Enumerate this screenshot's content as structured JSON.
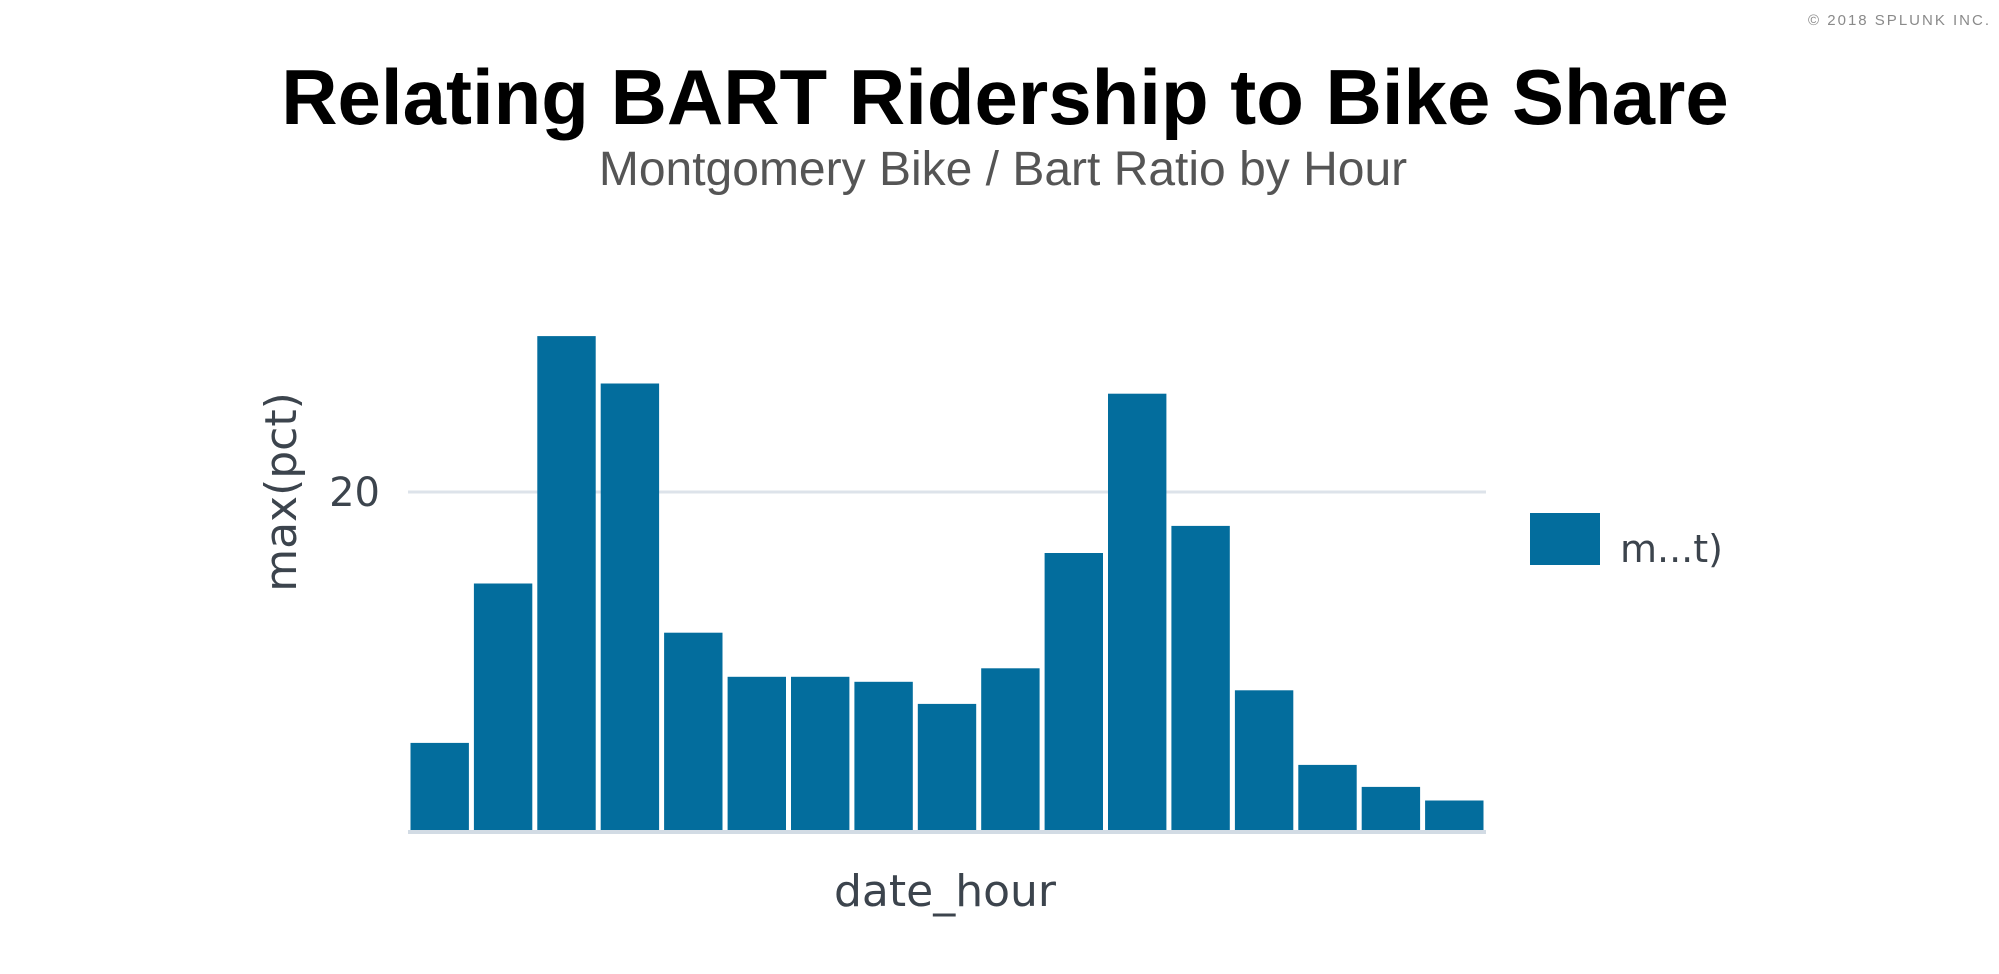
{
  "header": {
    "copyright": "© 2018 SPLUNK INC.",
    "title": "Relating BART Ridership to Bike Share",
    "subtitle": "Montgomery Bike / Bart Ratio by Hour"
  },
  "chart_data": {
    "type": "bar",
    "title": "",
    "xlabel": "date_hour",
    "ylabel": "max(pct)",
    "ylim": [
      0,
      30
    ],
    "yticks": [
      20
    ],
    "grid": true,
    "legend_position": "right",
    "series": [
      {
        "name": "m...t)",
        "color": "#036d9d",
        "values": [
          5.2,
          14.6,
          29.2,
          26.4,
          11.7,
          9.1,
          9.1,
          8.8,
          7.5,
          9.6,
          16.4,
          25.8,
          18.0,
          8.3,
          3.9,
          2.6,
          1.8
        ]
      }
    ]
  }
}
